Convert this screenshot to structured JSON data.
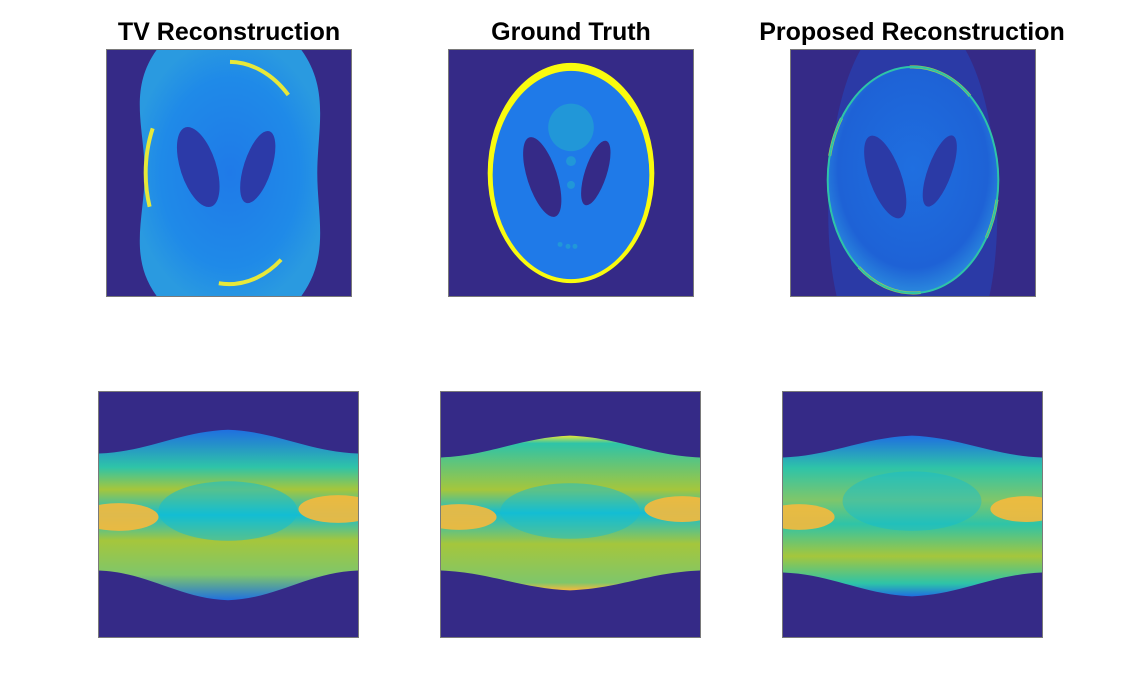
{
  "figure": {
    "titles": {
      "left": "TV Reconstruction",
      "middle": "Ground Truth",
      "right": "Proposed Reconstruction"
    },
    "colormap": {
      "background": "#352a87",
      "low": "#1c4fd8",
      "mid_blue": "#1f7ae8",
      "cyan": "#13bdd3",
      "teal": "#2ec4a8",
      "green_yellow": "#a5c63c",
      "orange_yellow": "#f6b93c",
      "yellow": "#f9fb0e"
    }
  }
}
